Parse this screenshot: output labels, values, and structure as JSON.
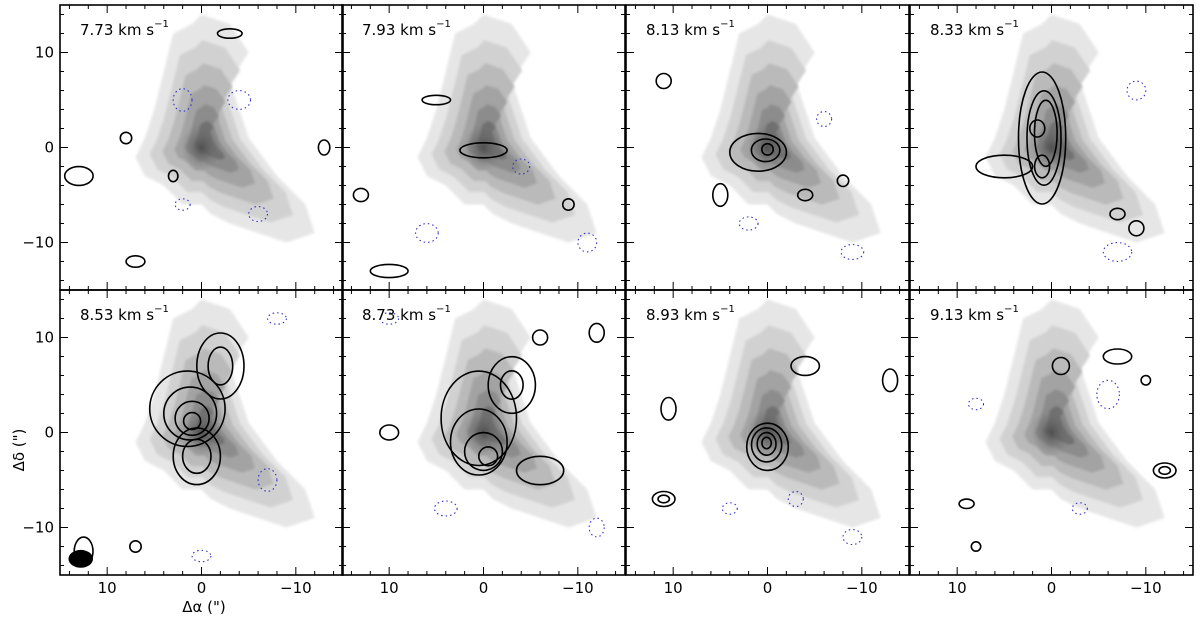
{
  "figure": {
    "xlabel": "Δα (\")",
    "ylabel": "Δδ (\")",
    "velocity_unit": "km s",
    "velocity_unit_exponent": "−1"
  },
  "chart_data": {
    "type": "heatmap",
    "description_of_encoding": "grayscale integrated emission with black positive contours and dotted blue negative contours per velocity channel",
    "xlim": [
      15,
      -15
    ],
    "ylim": [
      -15,
      15
    ],
    "x_ticks": [
      10,
      0,
      -10
    ],
    "x_tick_labels": [
      "10",
      "0",
      "−10"
    ],
    "y_ticks": [
      -10,
      0,
      10
    ],
    "y_tick_labels": [
      "−10",
      "0",
      "10"
    ],
    "grid": false,
    "panels": [
      {
        "velocity": "7.73",
        "contours": [
          {
            "type": "pos",
            "cx": 13,
            "cy": -3,
            "rx": 1.5,
            "ry": 1.0
          },
          {
            "type": "pos",
            "cx": 7,
            "cy": -12,
            "rx": 1.0,
            "ry": 0.6
          },
          {
            "type": "pos",
            "cx": -3,
            "cy": 12,
            "rx": 1.3,
            "ry": 0.5
          },
          {
            "type": "pos",
            "cx": 8,
            "cy": 1,
            "rx": 0.6,
            "ry": 0.6
          },
          {
            "type": "pos",
            "cx": 3,
            "cy": -3,
            "rx": 0.5,
            "ry": 0.6
          },
          {
            "type": "pos",
            "cx": -13,
            "cy": 0,
            "rx": 0.6,
            "ry": 0.8
          },
          {
            "type": "neg",
            "cx": 2,
            "cy": 5,
            "rx": 1.0,
            "ry": 1.2
          },
          {
            "type": "neg",
            "cx": -4,
            "cy": 5,
            "rx": 1.2,
            "ry": 1.0
          },
          {
            "type": "neg",
            "cx": -6,
            "cy": -7,
            "rx": 1.0,
            "ry": 0.8
          },
          {
            "type": "neg",
            "cx": 2,
            "cy": -6,
            "rx": 0.8,
            "ry": 0.6
          }
        ]
      },
      {
        "velocity": "7.93",
        "contours": [
          {
            "type": "pos",
            "cx": 0,
            "cy": -0.3,
            "rx": 2.5,
            "ry": 0.8
          },
          {
            "type": "pos",
            "cx": 5,
            "cy": 5,
            "rx": 1.5,
            "ry": 0.5
          },
          {
            "type": "pos",
            "cx": 13,
            "cy": -5,
            "rx": 0.8,
            "ry": 0.7
          },
          {
            "type": "pos",
            "cx": -9,
            "cy": -6,
            "rx": 0.6,
            "ry": 0.6
          },
          {
            "type": "pos",
            "cx": 10,
            "cy": -13,
            "rx": 2.0,
            "ry": 0.7
          },
          {
            "type": "neg",
            "cx": -4,
            "cy": -2,
            "rx": 0.9,
            "ry": 0.8
          },
          {
            "type": "neg",
            "cx": 6,
            "cy": -9,
            "rx": 1.2,
            "ry": 1.0
          },
          {
            "type": "neg",
            "cx": -11,
            "cy": -10,
            "rx": 1.0,
            "ry": 1.0
          }
        ]
      },
      {
        "velocity": "8.13",
        "contours": [
          {
            "type": "pos",
            "cx": 1,
            "cy": -0.5,
            "rx": 3.0,
            "ry": 2.0
          },
          {
            "type": "pos",
            "cx": 0.2,
            "cy": -0.3,
            "rx": 1.5,
            "ry": 1.2
          },
          {
            "type": "pos",
            "cx": 0,
            "cy": -0.2,
            "rx": 0.6,
            "ry": 0.6
          },
          {
            "type": "pos",
            "cx": 5,
            "cy": -5,
            "rx": 0.8,
            "ry": 1.2
          },
          {
            "type": "pos",
            "cx": -4,
            "cy": -5,
            "rx": 0.8,
            "ry": 0.6
          },
          {
            "type": "pos",
            "cx": -8,
            "cy": -3.5,
            "rx": 0.6,
            "ry": 0.6
          },
          {
            "type": "pos",
            "cx": 11,
            "cy": 7,
            "rx": 0.8,
            "ry": 0.8
          },
          {
            "type": "neg",
            "cx": -9,
            "cy": -11,
            "rx": 1.2,
            "ry": 0.8
          },
          {
            "type": "neg",
            "cx": 2,
            "cy": -8,
            "rx": 1.0,
            "ry": 0.7
          },
          {
            "type": "neg",
            "cx": -6,
            "cy": 3,
            "rx": 0.8,
            "ry": 0.8
          }
        ]
      },
      {
        "velocity": "8.33",
        "contours": [
          {
            "type": "pos",
            "cx": 1,
            "cy": 1,
            "rx": 2.5,
            "ry": 7.0
          },
          {
            "type": "pos",
            "cx": 0.8,
            "cy": 1,
            "rx": 1.8,
            "ry": 5.0
          },
          {
            "type": "pos",
            "cx": 0.6,
            "cy": 1.5,
            "rx": 1.2,
            "ry": 3.5
          },
          {
            "type": "pos",
            "cx": 1,
            "cy": -2,
            "rx": 0.8,
            "ry": 1.2
          },
          {
            "type": "pos",
            "cx": 1.5,
            "cy": 2,
            "rx": 0.8,
            "ry": 0.9
          },
          {
            "type": "pos",
            "cx": 5,
            "cy": -2,
            "rx": 3.0,
            "ry": 1.2
          },
          {
            "type": "pos",
            "cx": -9,
            "cy": -8.5,
            "rx": 0.8,
            "ry": 0.8
          },
          {
            "type": "pos",
            "cx": -7,
            "cy": -7,
            "rx": 0.8,
            "ry": 0.6
          },
          {
            "type": "neg",
            "cx": -7,
            "cy": -11,
            "rx": 1.5,
            "ry": 1.0
          },
          {
            "type": "neg",
            "cx": -9,
            "cy": 6,
            "rx": 1.0,
            "ry": 1.0
          }
        ]
      },
      {
        "velocity": "8.53",
        "contours": [
          {
            "type": "pos",
            "cx": 1.5,
            "cy": 2.5,
            "rx": 4.0,
            "ry": 4.0
          },
          {
            "type": "pos",
            "cx": 1.2,
            "cy": 2.0,
            "rx": 2.8,
            "ry": 2.8
          },
          {
            "type": "pos",
            "cx": 1.0,
            "cy": 1.5,
            "rx": 1.8,
            "ry": 1.8
          },
          {
            "type": "pos",
            "cx": 1.0,
            "cy": 1.2,
            "rx": 0.9,
            "ry": 0.9
          },
          {
            "type": "pos",
            "cx": -2,
            "cy": 7,
            "rx": 2.5,
            "ry": 3.5
          },
          {
            "type": "pos",
            "cx": -2,
            "cy": 7,
            "rx": 1.3,
            "ry": 2.0
          },
          {
            "type": "pos",
            "cx": 0.5,
            "cy": -2.5,
            "rx": 2.5,
            "ry": 3.0
          },
          {
            "type": "pos",
            "cx": 0.5,
            "cy": -2.5,
            "rx": 1.5,
            "ry": 1.8
          },
          {
            "type": "pos",
            "cx": 12.5,
            "cy": -12.5,
            "rx": 1.0,
            "ry": 1.5
          },
          {
            "type": "pos",
            "cx": 7,
            "cy": -12,
            "rx": 0.6,
            "ry": 0.6
          },
          {
            "type": "neg",
            "cx": -7,
            "cy": -5,
            "rx": 1.0,
            "ry": 1.2
          },
          {
            "type": "neg",
            "cx": 0,
            "cy": -13,
            "rx": 1.0,
            "ry": 0.6
          },
          {
            "type": "neg",
            "cx": -8,
            "cy": 12,
            "rx": 1.0,
            "ry": 0.6
          }
        ]
      },
      {
        "velocity": "8.73",
        "contours": [
          {
            "type": "pos",
            "cx": 0.5,
            "cy": 1.5,
            "rx": 4.0,
            "ry": 5.0
          },
          {
            "type": "pos",
            "cx": -3,
            "cy": 5,
            "rx": 2.5,
            "ry": 3.0
          },
          {
            "type": "pos",
            "cx": -3,
            "cy": 5,
            "rx": 1.2,
            "ry": 1.5
          },
          {
            "type": "pos",
            "cx": 0.5,
            "cy": -1,
            "rx": 3.0,
            "ry": 3.5
          },
          {
            "type": "pos",
            "cx": 0,
            "cy": -2,
            "rx": 2.0,
            "ry": 2.0
          },
          {
            "type": "pos",
            "cx": -0.5,
            "cy": -2.5,
            "rx": 1.0,
            "ry": 1.0
          },
          {
            "type": "pos",
            "cx": -6,
            "cy": -4,
            "rx": 2.5,
            "ry": 1.5
          },
          {
            "type": "pos",
            "cx": 10,
            "cy": 0,
            "rx": 1.0,
            "ry": 0.8
          },
          {
            "type": "pos",
            "cx": -6,
            "cy": 10,
            "rx": 0.8,
            "ry": 0.8
          },
          {
            "type": "pos",
            "cx": -12,
            "cy": 10.5,
            "rx": 0.8,
            "ry": 1.0
          },
          {
            "type": "neg",
            "cx": 4,
            "cy": -8,
            "rx": 1.2,
            "ry": 0.8
          },
          {
            "type": "neg",
            "cx": -12,
            "cy": -10,
            "rx": 0.8,
            "ry": 1.0
          },
          {
            "type": "neg",
            "cx": 10,
            "cy": 12,
            "rx": 1.0,
            "ry": 0.6
          }
        ]
      },
      {
        "velocity": "8.93",
        "contours": [
          {
            "type": "pos",
            "cx": 0,
            "cy": -1.5,
            "rx": 2.2,
            "ry": 2.5
          },
          {
            "type": "pos",
            "cx": 0.1,
            "cy": -1.3,
            "rx": 1.6,
            "ry": 1.8
          },
          {
            "type": "pos",
            "cx": 0.1,
            "cy": -1.2,
            "rx": 1.0,
            "ry": 1.2
          },
          {
            "type": "pos",
            "cx": 0.1,
            "cy": -1.1,
            "rx": 0.5,
            "ry": 0.6
          },
          {
            "type": "pos",
            "cx": 11,
            "cy": -7,
            "rx": 1.2,
            "ry": 0.8
          },
          {
            "type": "pos",
            "cx": 11,
            "cy": -7,
            "rx": 0.6,
            "ry": 0.4
          },
          {
            "type": "pos",
            "cx": 10.5,
            "cy": 2.5,
            "rx": 0.8,
            "ry": 1.2
          },
          {
            "type": "pos",
            "cx": -4,
            "cy": 7,
            "rx": 1.5,
            "ry": 1.0
          },
          {
            "type": "pos",
            "cx": -13,
            "cy": 5.5,
            "rx": 0.8,
            "ry": 1.2
          },
          {
            "type": "neg",
            "cx": -3,
            "cy": -7,
            "rx": 0.8,
            "ry": 0.8
          },
          {
            "type": "neg",
            "cx": -9,
            "cy": -11,
            "rx": 1.0,
            "ry": 0.8
          },
          {
            "type": "neg",
            "cx": 4,
            "cy": -8,
            "rx": 0.8,
            "ry": 0.6
          }
        ]
      },
      {
        "velocity": "9.13",
        "contours": [
          {
            "type": "pos",
            "cx": -12,
            "cy": -4,
            "rx": 1.2,
            "ry": 0.8
          },
          {
            "type": "pos",
            "cx": -12,
            "cy": -4,
            "rx": 0.6,
            "ry": 0.4
          },
          {
            "type": "pos",
            "cx": -7,
            "cy": 8,
            "rx": 1.5,
            "ry": 0.8
          },
          {
            "type": "pos",
            "cx": -1,
            "cy": 7,
            "rx": 0.9,
            "ry": 0.9
          },
          {
            "type": "pos",
            "cx": 9,
            "cy": -7.5,
            "rx": 0.8,
            "ry": 0.5
          },
          {
            "type": "pos",
            "cx": 8,
            "cy": -12,
            "rx": 0.5,
            "ry": 0.5
          },
          {
            "type": "pos",
            "cx": -10,
            "cy": 5.5,
            "rx": 0.5,
            "ry": 0.5
          },
          {
            "type": "neg",
            "cx": -3,
            "cy": -8,
            "rx": 0.8,
            "ry": 0.6
          },
          {
            "type": "neg",
            "cx": 8,
            "cy": 3,
            "rx": 0.8,
            "ry": 0.6
          },
          {
            "type": "neg",
            "cx": -6,
            "cy": 4,
            "rx": 1.2,
            "ry": 1.5
          }
        ]
      }
    ]
  }
}
